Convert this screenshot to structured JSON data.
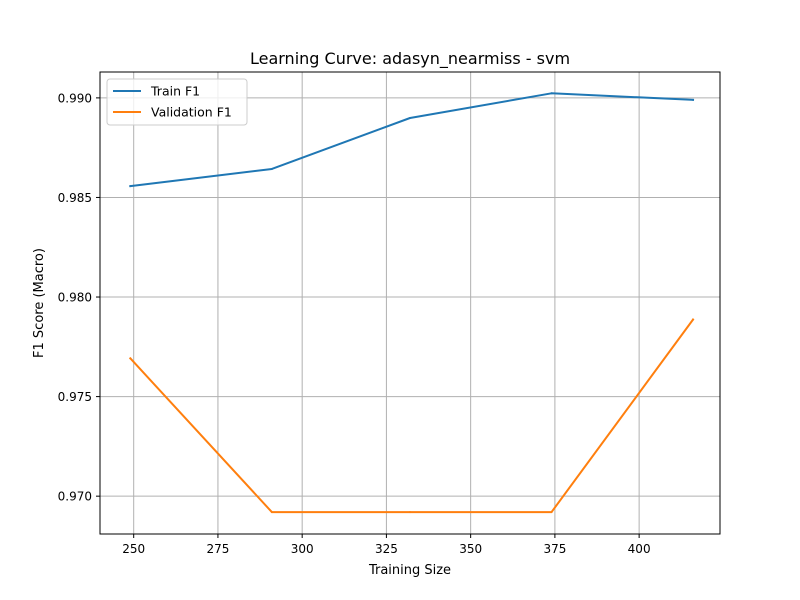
{
  "chart_data": {
    "type": "line",
    "title": "Learning Curve: adasyn_nearmiss - svm",
    "xlabel": "Training Size",
    "ylabel": "F1 Score (Macro)",
    "xlim": [
      240,
      424
    ],
    "ylim": [
      0.9681,
      0.9913
    ],
    "xticks": [
      250,
      275,
      300,
      325,
      350,
      375,
      400
    ],
    "xtick_labels": [
      "250",
      "275",
      "300",
      "325",
      "350",
      "375",
      "400"
    ],
    "yticks": [
      0.97,
      0.975,
      0.98,
      0.985,
      0.99
    ],
    "ytick_labels": [
      "0.970",
      "0.975",
      "0.980",
      "0.985",
      "0.990"
    ],
    "grid": true,
    "legend_position": "top-left",
    "x": [
      249,
      291,
      332,
      374,
      416
    ],
    "series": [
      {
        "name": "Train F1",
        "color": "#1f77b4",
        "values": [
          0.98557,
          0.98643,
          0.98899,
          0.99023,
          0.9899
        ]
      },
      {
        "name": "Validation F1",
        "color": "#ff7f0e",
        "values": [
          0.97692,
          0.9692,
          0.9692,
          0.9692,
          0.97887
        ]
      }
    ]
  }
}
